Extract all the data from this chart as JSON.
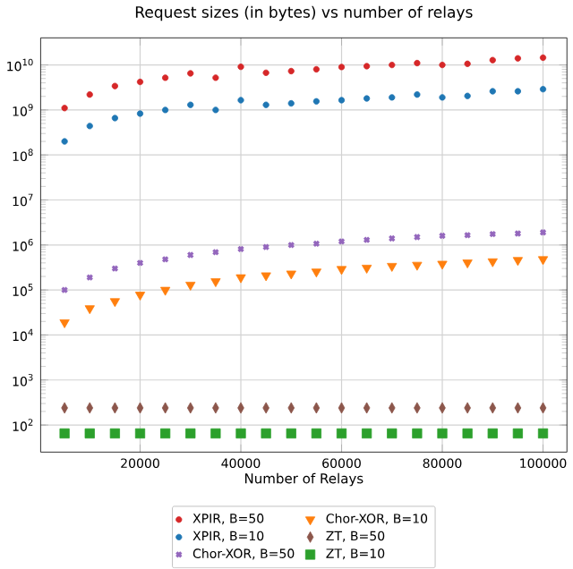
{
  "chart_data": {
    "type": "scatter",
    "title": "Request sizes (in bytes) vs number of relays",
    "xlabel": "Number of Relays",
    "x": [
      5000,
      10000,
      15000,
      20000,
      25000,
      30000,
      35000,
      40000,
      45000,
      50000,
      55000,
      60000,
      65000,
      70000,
      75000,
      80000,
      85000,
      90000,
      95000,
      100000
    ],
    "series": [
      {
        "name": "XPIR, B=50",
        "color": "#d62728",
        "marker": "circle",
        "values": [
          1100000000.0,
          2200000000.0,
          3400000000.0,
          4200000000.0,
          5200000000.0,
          6500000000.0,
          5200000000.0,
          9100000000.0,
          6700000000.0,
          7300000000.0,
          8000000000.0,
          9000000000.0,
          9400000000.0,
          10000000000.0,
          11000000000.0,
          10000000000.0,
          10600000000.0,
          12800000000.0,
          14000000000.0,
          14500000000.0
        ]
      },
      {
        "name": "XPIR, B=10",
        "color": "#1f77b4",
        "marker": "circle",
        "values": [
          200000000.0,
          440000000.0,
          660000000.0,
          830000000.0,
          1000000000.0,
          1300000000.0,
          1000000000.0,
          1650000000.0,
          1300000000.0,
          1400000000.0,
          1550000000.0,
          1650000000.0,
          1800000000.0,
          1900000000.0,
          2200000000.0,
          1900000000.0,
          2050000000.0,
          2600000000.0,
          2600000000.0,
          2900000000.0
        ]
      },
      {
        "name": "Chor-XOR, B=50",
        "color": "#9467bd",
        "marker": "cross",
        "values": [
          100000.0,
          190000.0,
          300000.0,
          400000.0,
          480000.0,
          600000.0,
          690000.0,
          810000.0,
          900000.0,
          1000000.0,
          1070000.0,
          1200000.0,
          1300000.0,
          1400000.0,
          1500000.0,
          1600000.0,
          1650000.0,
          1750000.0,
          1800000.0,
          1900000.0
        ]
      },
      {
        "name": "Chor-XOR, B=10",
        "color": "#ff7f0e",
        "marker": "triangle",
        "values": [
          19000.0,
          39000.0,
          56000.0,
          78000.0,
          100000.0,
          130000.0,
          155000.0,
          190000.0,
          210000.0,
          230000.0,
          255000.0,
          290000.0,
          310000.0,
          340000.0,
          360000.0,
          380000.0,
          405000.0,
          430000.0,
          460000.0,
          480000.0
        ]
      },
      {
        "name": "ZT, B=50",
        "color": "#8c564b",
        "marker": "diamond",
        "values": [
          240,
          240,
          240,
          240,
          240,
          240,
          240,
          240,
          240,
          240,
          240,
          240,
          240,
          240,
          240,
          240,
          240,
          240,
          240,
          240
        ]
      },
      {
        "name": "ZT, B=10",
        "color": "#2ca02c",
        "marker": "square",
        "values": [
          65,
          65,
          65,
          65,
          65,
          65,
          65,
          65,
          65,
          65,
          65,
          65,
          65,
          65,
          65,
          65,
          65,
          65,
          65,
          65
        ]
      }
    ],
    "log": "y",
    "xlim": [
      250,
      104750
    ],
    "ylim": [
      25,
      40000000000.0
    ],
    "xticks": [
      20000,
      40000,
      60000,
      80000,
      100000
    ],
    "yticks": [
      {
        "value": 100,
        "label": "10$^{2}$"
      },
      {
        "value": 1000,
        "label": "10$^{3}$"
      },
      {
        "value": 10000,
        "label": "10$^{4}$"
      },
      {
        "value": 100000,
        "label": "10$^{5}$"
      },
      {
        "value": 1000000,
        "label": "10$^{6}$"
      },
      {
        "value": 10000000,
        "label": "10$^{7}$"
      },
      {
        "value": 100000000,
        "label": "10$^{8}$"
      },
      {
        "value": 1000000000,
        "label": "10$^{9}$"
      },
      {
        "value": 10000000000,
        "label": "10$^{10}$"
      }
    ],
    "grid": true,
    "legend": "bottom"
  }
}
